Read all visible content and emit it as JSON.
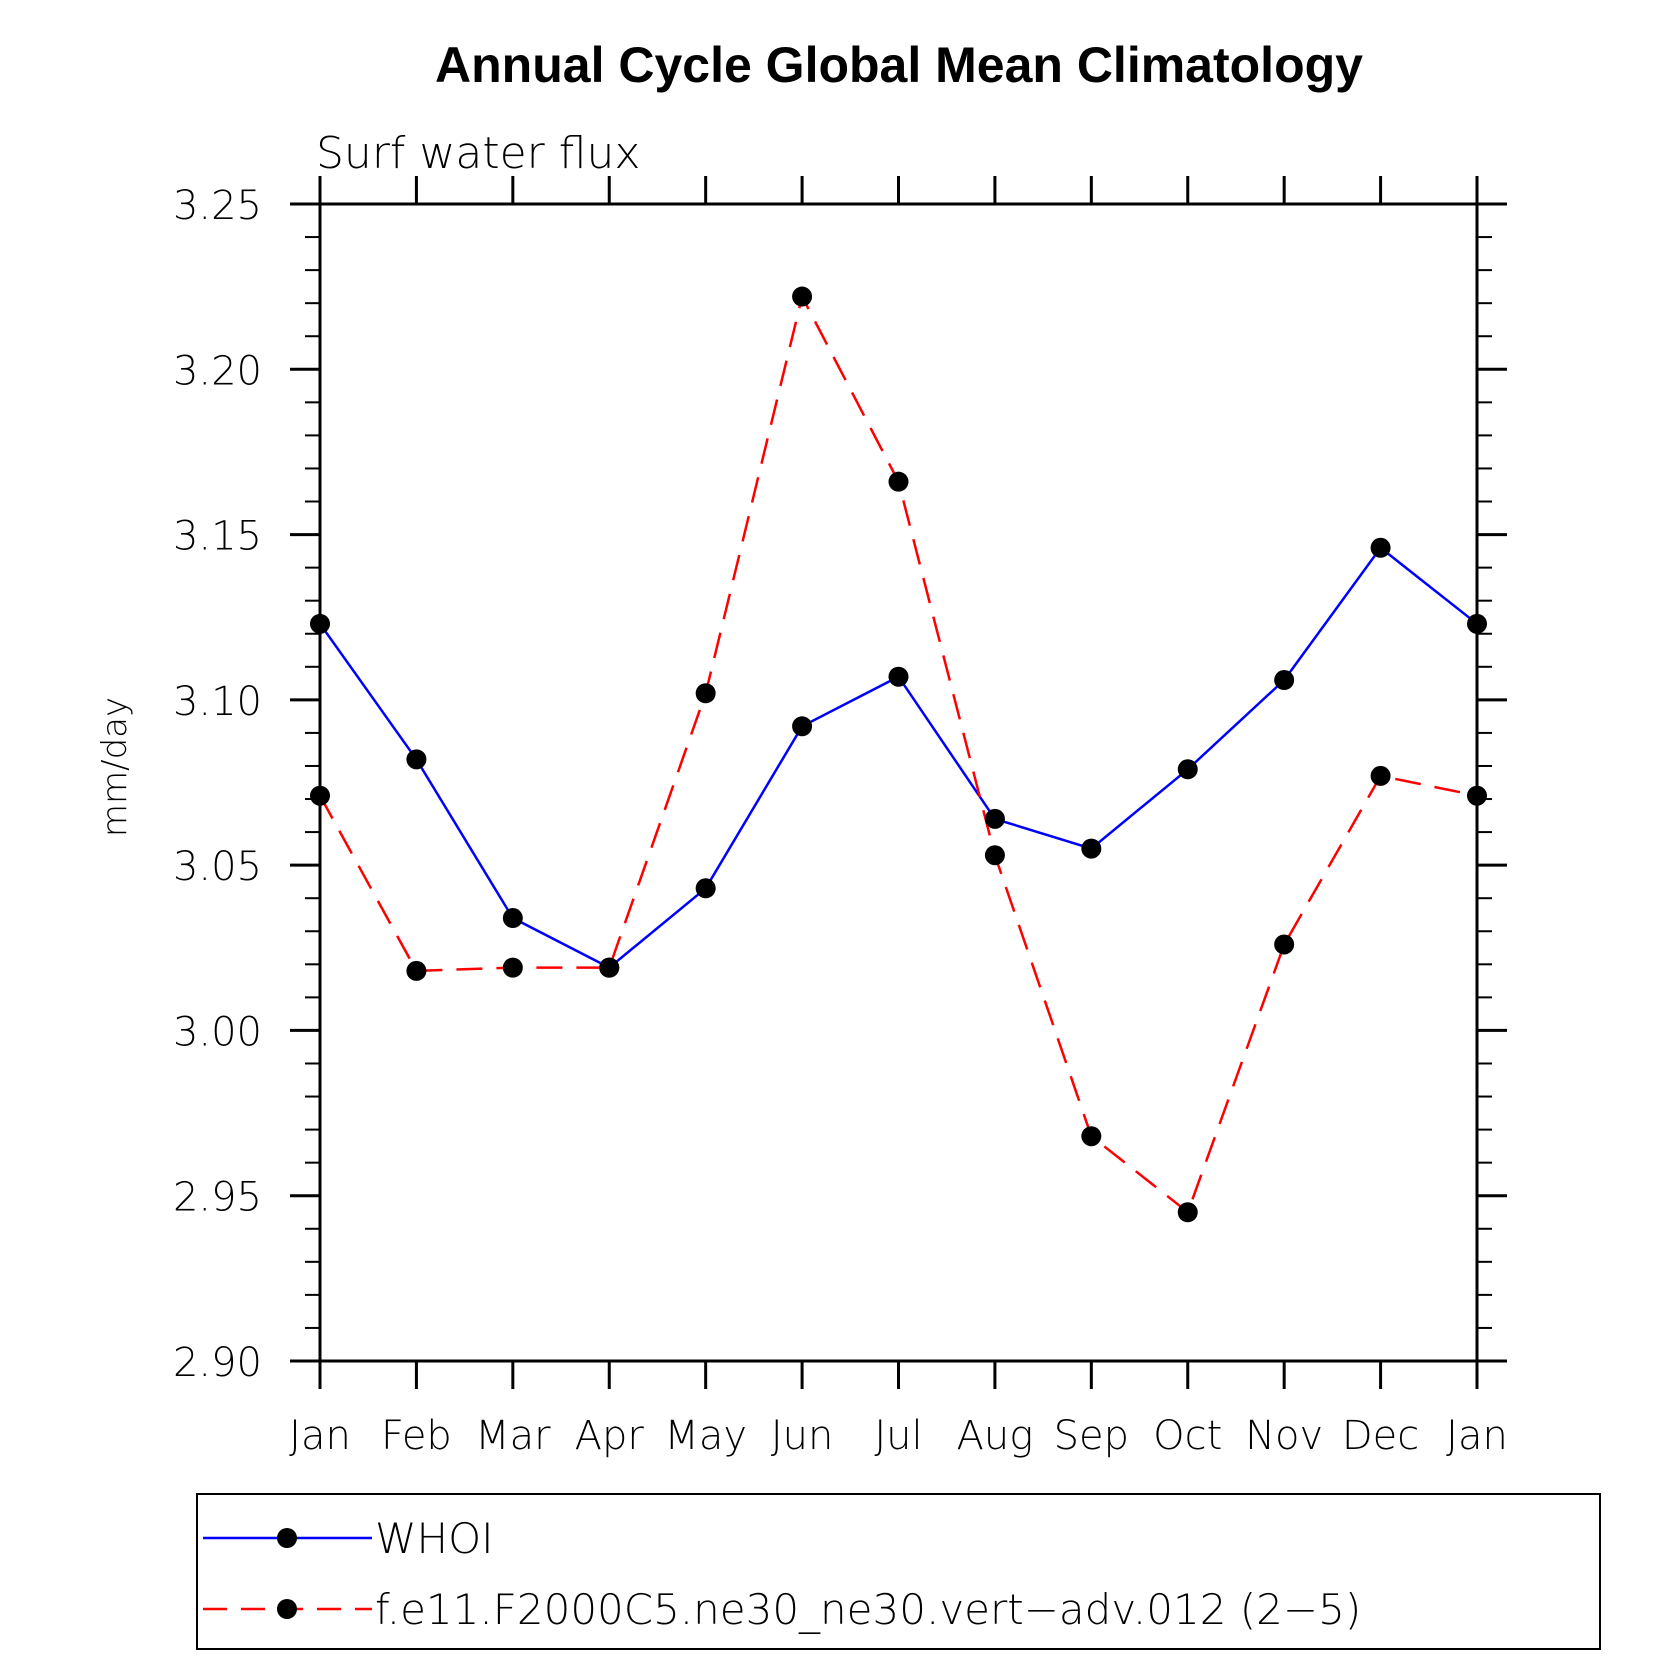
{
  "chart_data": {
    "type": "line",
    "title": "Annual Cycle Global Mean Climatology",
    "subtitle": "Surf water flux",
    "ylabel": "mm/day",
    "xlabel": "",
    "categories": [
      "Jan",
      "Feb",
      "Mar",
      "Apr",
      "May",
      "Jun",
      "Jul",
      "Aug",
      "Sep",
      "Oct",
      "Nov",
      "Dec",
      "Jan"
    ],
    "ylim": [
      2.9,
      3.25
    ],
    "yticks": [
      "2.90",
      "2.95",
      "3.00",
      "3.05",
      "3.10",
      "3.15",
      "3.20",
      "3.25"
    ],
    "grid": false,
    "legend_position": "bottom",
    "series": [
      {
        "name": "WHOI",
        "color": "#0000ff",
        "dash": "solid",
        "marker": "filled-circle",
        "values": [
          3.123,
          3.082,
          3.034,
          3.019,
          3.043,
          3.092,
          3.107,
          3.064,
          3.055,
          3.079,
          3.106,
          3.146,
          3.123
        ]
      },
      {
        "name": "f.e11.F2000C5.ne30_ne30.vert−adv.012 (2−5)",
        "color": "#ff0000",
        "dash": "dashed",
        "marker": "filled-circle",
        "values": [
          3.071,
          3.018,
          3.019,
          3.019,
          3.102,
          3.222,
          3.166,
          3.053,
          2.968,
          2.945,
          3.026,
          3.077,
          3.071
        ]
      }
    ]
  }
}
